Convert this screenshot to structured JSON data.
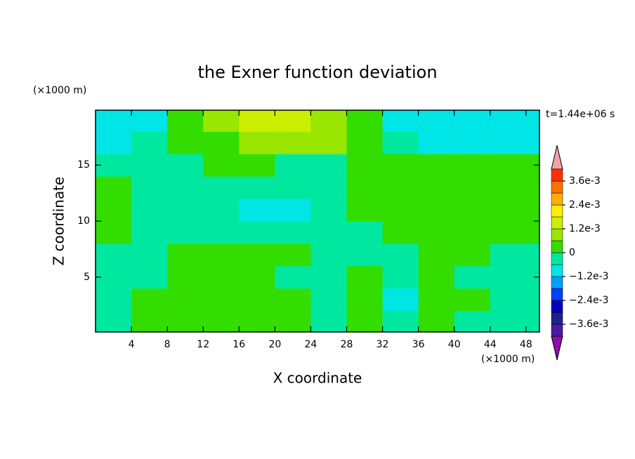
{
  "chart_data": {
    "type": "contour",
    "title": "the Exner function deviation",
    "x_label": "X coordinate",
    "y_label": "Z coordinate",
    "x_unit": "(×1000 m)",
    "y_unit": "(×1000 m)",
    "annotation": "t=1.44e+06 s",
    "xlim": [
      0,
      49.5
    ],
    "ylim": [
      0.1,
      19.9
    ],
    "xticks": [
      4,
      8,
      12,
      16,
      20,
      24,
      28,
      32,
      36,
      40,
      44,
      48
    ],
    "yticks": [
      5,
      10,
      15
    ],
    "x": [
      2,
      6,
      10,
      14,
      18,
      22,
      26,
      30,
      34,
      38,
      42,
      46
    ],
    "y": [
      1,
      3,
      5,
      7,
      9,
      11,
      13,
      15,
      17,
      19
    ],
    "z_values": [
      [
        -0.0003,
        0.0003,
        0.0003,
        0.0003,
        0.0003,
        0.0003,
        -0.0003,
        0.0003,
        -0.0003,
        0.0003,
        -0.0003,
        -0.0003
      ],
      [
        -0.0003,
        0.0003,
        0.0003,
        0.0003,
        0.0003,
        0.0003,
        -0.0003,
        0.0003,
        -0.0009,
        0.0003,
        0.0003,
        -0.0003
      ],
      [
        -0.0003,
        -0.0003,
        0.0003,
        0.0003,
        0.0003,
        -0.0003,
        -0.0003,
        0.0003,
        -0.0003,
        0.0003,
        -0.0003,
        -0.0003
      ],
      [
        -0.0003,
        -0.0003,
        0.0003,
        0.0003,
        0.0003,
        0.0003,
        -0.0003,
        -0.0003,
        -0.0003,
        0.0003,
        0.0003,
        -0.0003
      ],
      [
        0.0003,
        -0.0003,
        -0.0003,
        -0.0003,
        -0.0003,
        -0.0003,
        -0.0003,
        -0.0003,
        0.0003,
        0.0003,
        0.0003,
        0.0003
      ],
      [
        0.0003,
        -0.0003,
        -0.0003,
        -0.0003,
        -0.0009,
        -0.0009,
        -0.0003,
        0.0003,
        0.0003,
        0.0003,
        0.0003,
        0.0003
      ],
      [
        0.0003,
        -0.0003,
        -0.0003,
        -0.0003,
        -0.0003,
        -0.0003,
        -0.0003,
        0.0003,
        0.0003,
        0.0003,
        0.0003,
        0.0003
      ],
      [
        -0.0003,
        -0.0003,
        -0.0003,
        0.0003,
        0.0003,
        -0.0003,
        -0.0003,
        0.0003,
        0.0003,
        0.0003,
        0.0003,
        0.0003
      ],
      [
        -0.0009,
        -0.0003,
        0.0003,
        0.0003,
        0.0009,
        0.0009,
        0.0009,
        0.0003,
        -0.0003,
        -0.0009,
        -0.0009,
        -0.0009
      ],
      [
        -0.0009,
        -0.0009,
        0.0003,
        0.0009,
        0.0015,
        0.0015,
        0.0009,
        0.0003,
        -0.0009,
        -0.0009,
        -0.0009,
        -0.0009
      ]
    ],
    "levels": [
      -0.0042,
      -0.0036,
      -0.003,
      -0.0024,
      -0.0018,
      -0.0012,
      -0.0006,
      0,
      0.0006,
      0.0012,
      0.0018,
      0.0024,
      0.003,
      0.0036,
      0.0042
    ],
    "colors": [
      "#8a10a8",
      "#4a1aa0",
      "#20208a",
      "#0000c0",
      "#0040ff",
      "#00a0ff",
      "#00e6e6",
      "#00e8a0",
      "#33dd00",
      "#99e600",
      "#ccee00",
      "#ffee00",
      "#ffb000",
      "#ff7000",
      "#ff3000",
      "#f4a0a8"
    ],
    "colorbar_ticks": [
      {
        "value": -0.0036,
        "label": "−3.6e-3"
      },
      {
        "value": -0.0024,
        "label": "−2.4e-3"
      },
      {
        "value": -0.0012,
        "label": "−1.2e-3"
      },
      0,
      {
        "value": 0.0012,
        "label": "1.2e-3"
      },
      {
        "value": 0.0024,
        "label": "2.4e-3"
      },
      {
        "value": 0.0036,
        "label": "3.6e-3"
      }
    ]
  }
}
